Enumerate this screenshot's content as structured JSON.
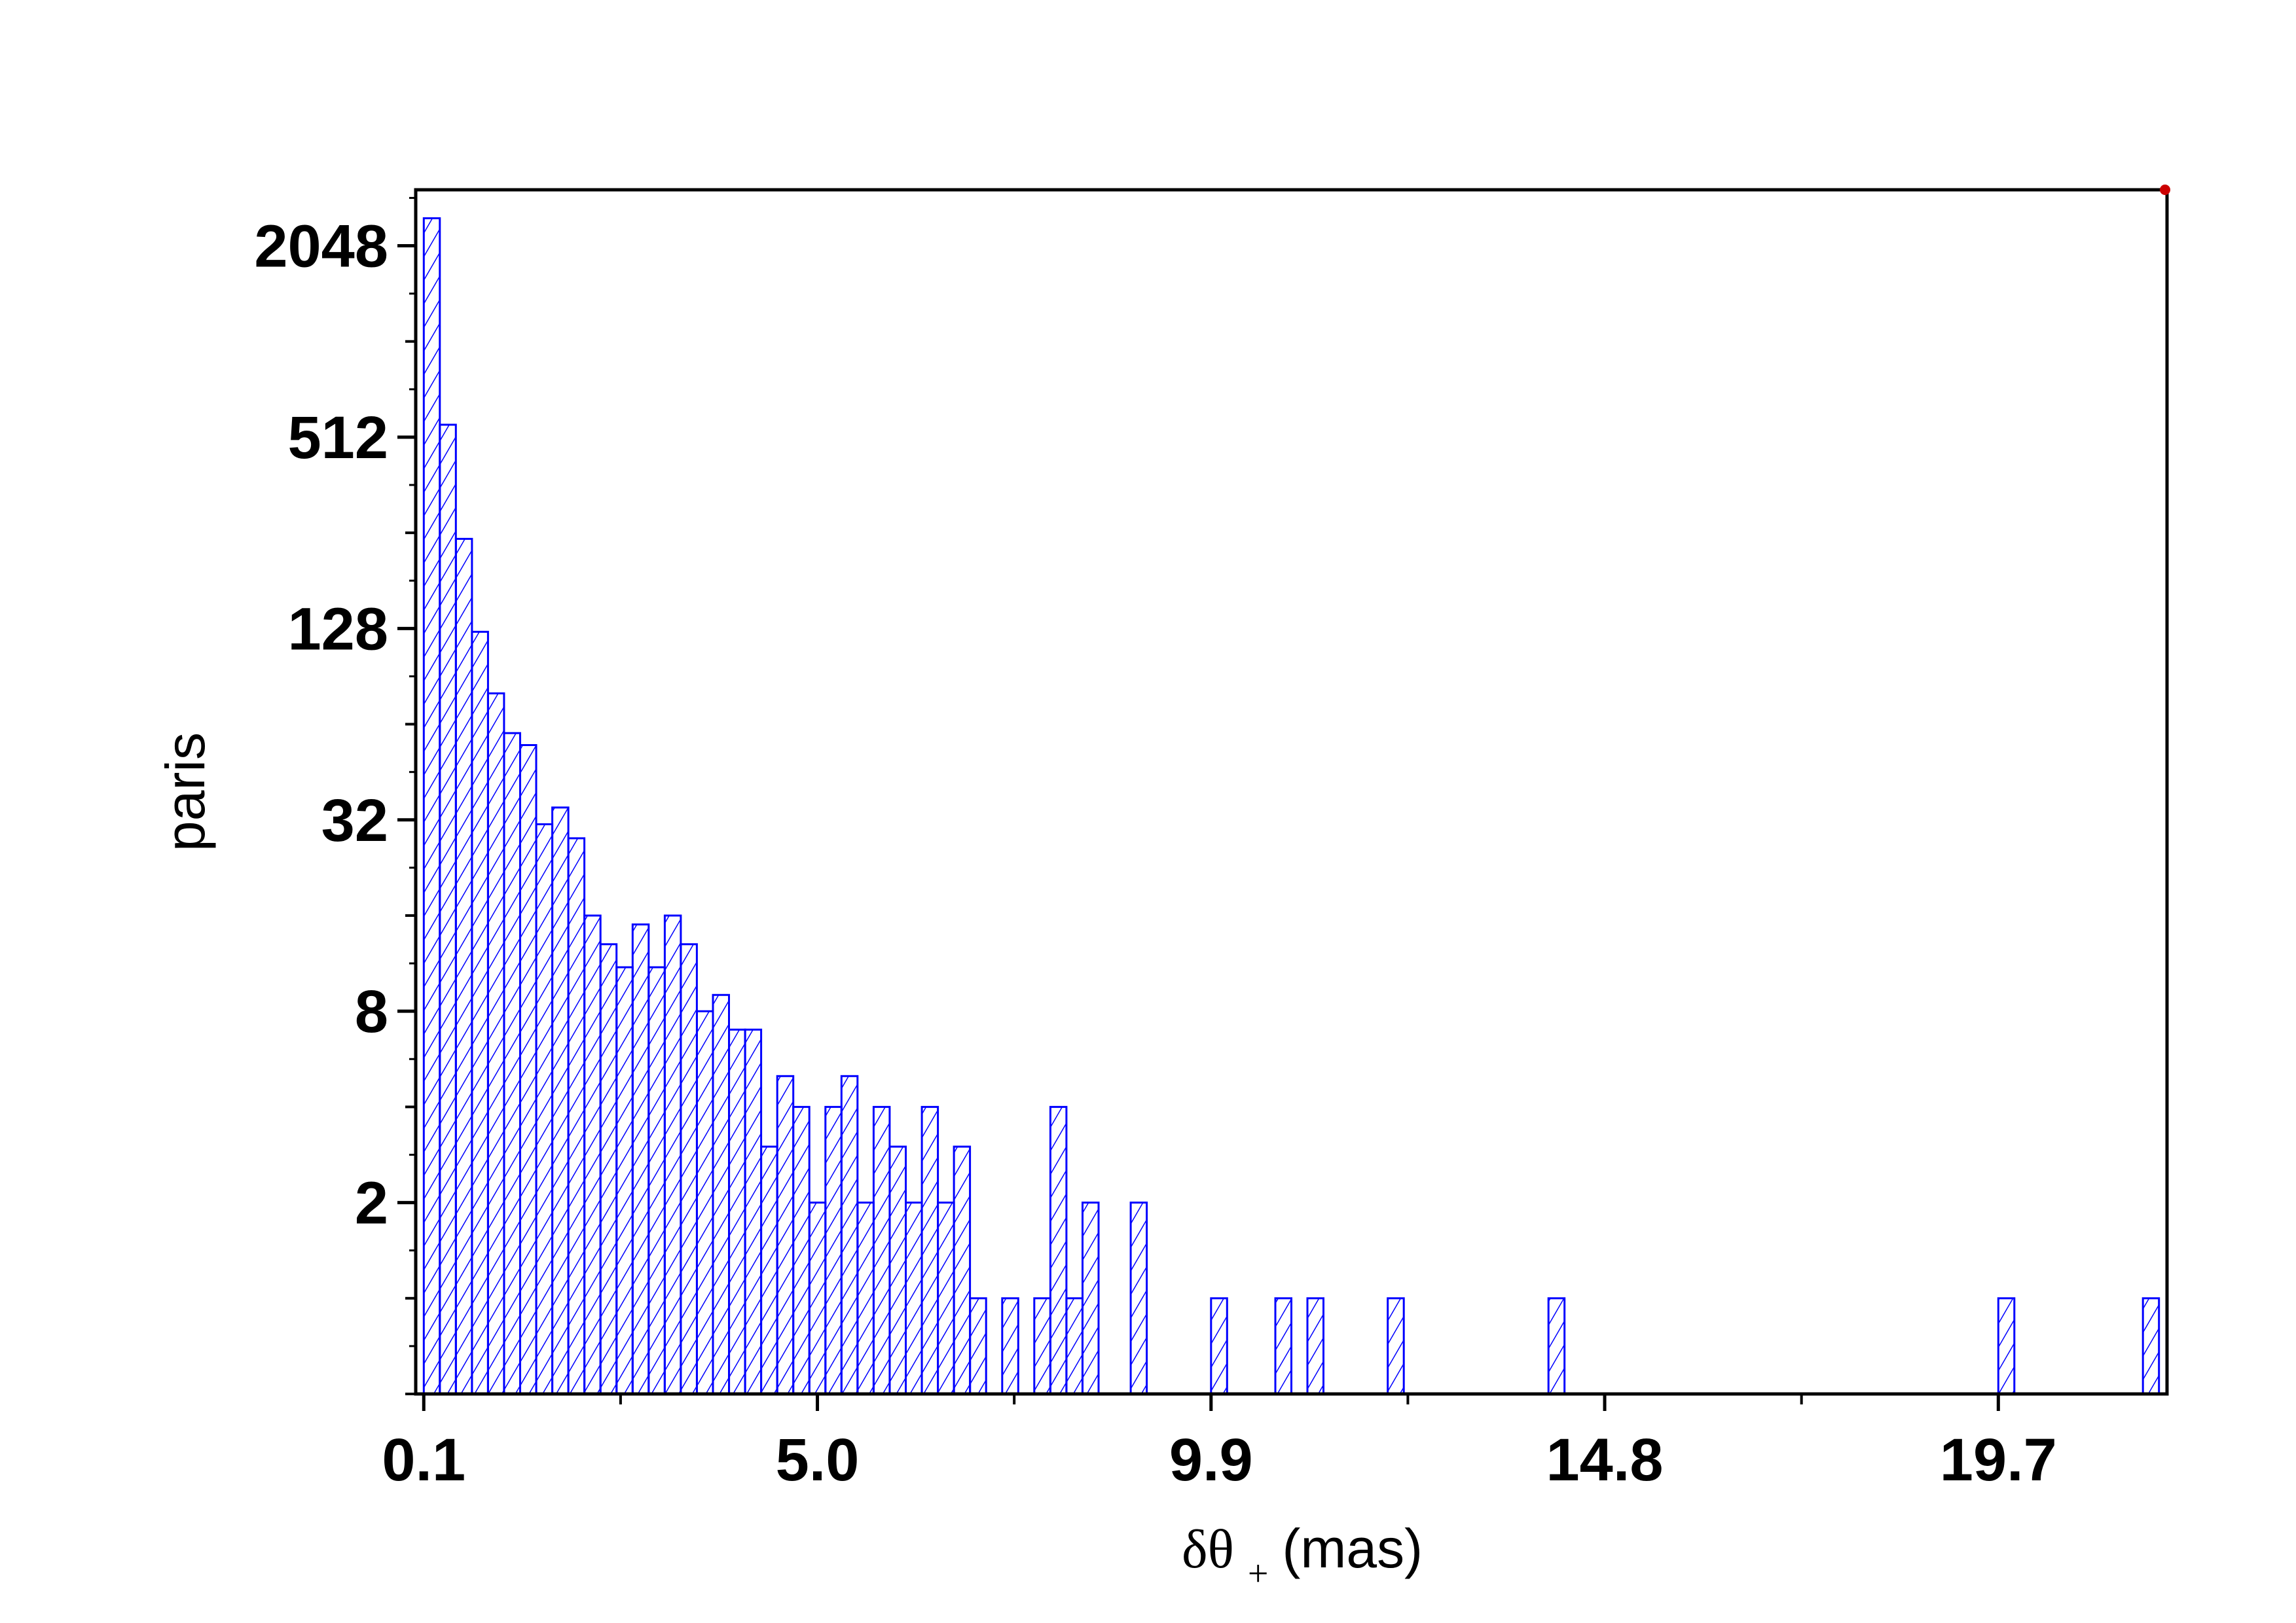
{
  "chart_data": {
    "type": "bar",
    "title": "",
    "xlabel": "δθ₊(mas)",
    "xlabel_parts": {
      "symbol": "δθ",
      "subscript": "+",
      "unit": "(mas)"
    },
    "ylabel": "paris",
    "y_scale": "log2",
    "xlim": [
      0.0,
      21.8
    ],
    "ylim": [
      0.5,
      3072
    ],
    "x_ticks": [
      0.1,
      5.0,
      9.9,
      14.8,
      19.7
    ],
    "x_tick_labels": [
      "0.1",
      "5.0",
      "9.9",
      "14.8",
      "19.7"
    ],
    "y_ticks": [
      2,
      8,
      32,
      128,
      512,
      2048
    ],
    "y_tick_labels": [
      "2",
      "8",
      "32",
      "128",
      "512",
      "2048"
    ],
    "bin_width": 0.2,
    "bin_starts": [
      0.1,
      0.3,
      0.5,
      0.7,
      0.9,
      1.1,
      1.3,
      1.5,
      1.7,
      1.9,
      2.1,
      2.3,
      2.5,
      2.7,
      2.9,
      3.1,
      3.3,
      3.5,
      3.7,
      3.9,
      4.1,
      4.3,
      4.5,
      4.7,
      4.9,
      5.1,
      5.3,
      5.5,
      5.7,
      5.9,
      6.1,
      6.3,
      6.5,
      6.7,
      6.9,
      7.3,
      7.7,
      7.9,
      8.1,
      8.3,
      8.9,
      9.9,
      10.7,
      11.1,
      12.1,
      14.1,
      19.7,
      21.5
    ],
    "counts": [
      2500,
      560,
      245,
      125,
      80,
      60,
      55,
      31,
      35,
      28,
      16,
      13,
      11,
      15,
      11,
      16,
      13,
      8,
      9,
      7,
      7,
      3,
      5,
      4,
      2,
      4,
      5,
      2,
      4,
      3,
      2,
      4,
      2,
      3,
      1,
      1,
      1,
      4,
      1,
      2,
      2,
      1,
      1,
      1,
      1,
      1,
      1,
      1
    ],
    "grid": false,
    "legend": null,
    "bar_color": "#0000ff",
    "bar_fill": "hatched",
    "frame_color": "#000000"
  }
}
